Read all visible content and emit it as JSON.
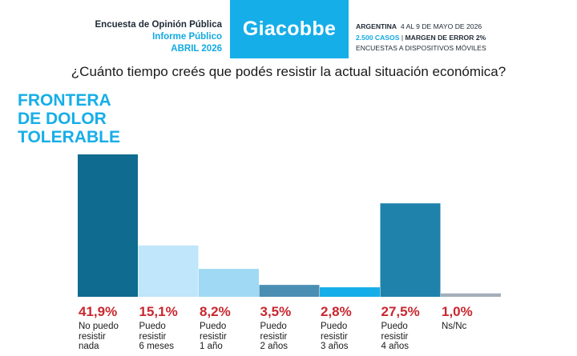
{
  "header": {
    "survey_title": "Encuesta de Opinión Pública",
    "report_type": "Informe Público",
    "report_date": "ABRIL 2026",
    "brand": "Giacobbe",
    "country": "ARGENTINA",
    "field_dates": "4 AL 9 DE MAYO DE 2026",
    "cases": "2.500 CASOS",
    "margin": "MARGEN DE ERROR 2%",
    "method": "ENCUESTAS A DISPOSITIVOS MÓVILES"
  },
  "colors": {
    "brand": "#16aee8",
    "value_labels": "#c9272e"
  },
  "chart_data": {
    "type": "bar",
    "title": "¿Cuánto tiempo creés que podés resistir la actual situación económica?",
    "subtitle": "FRONTERA\nDE DOLOR\nTOLERABLE",
    "categories": [
      "No puedo\nresistir\nnada",
      "Puedo\nresistir\n6 meses",
      "Puedo\nresistir\n1 año",
      "Puedo\nresistir\n2 años",
      "Puedo\nresistir\n3 años",
      "Puedo\nresistir\n4 años",
      "Ns/Nc"
    ],
    "values": [
      41.9,
      15.1,
      8.2,
      3.5,
      2.8,
      27.5,
      1.0
    ],
    "value_labels": [
      "41,9%",
      "15,1%",
      "8,2%",
      "3,5%",
      "2,8%",
      "27,5%",
      "1,0%"
    ],
    "bar_colors": [
      "#0f6b8f",
      "#bfe6fa",
      "#9fd9f4",
      "#4a8fb3",
      "#16aee8",
      "#1f82ab",
      "#a4afbb"
    ],
    "ylim": [
      0,
      41.9
    ],
    "grid": false,
    "legend": "none"
  }
}
